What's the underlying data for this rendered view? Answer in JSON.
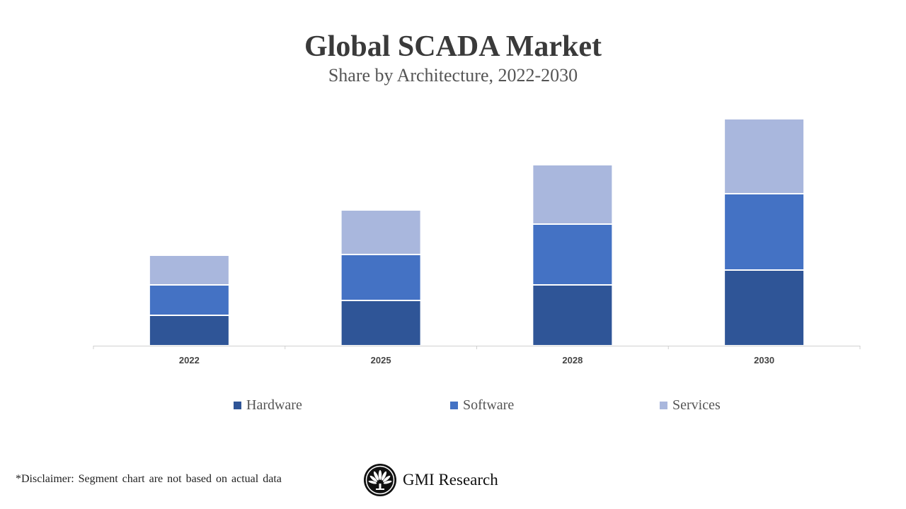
{
  "chart_data": {
    "type": "bar",
    "stacked": true,
    "title": "Global SCADA Market",
    "subtitle": "Share by Architecture, 2022-2030",
    "categories": [
      "2022",
      "2025",
      "2028",
      "2030"
    ],
    "series": [
      {
        "name": "Hardware",
        "color": "#2F5597",
        "values": [
          43,
          64,
          86,
          107
        ]
      },
      {
        "name": "Software",
        "color": "#4472C4",
        "values": [
          43,
          65,
          86,
          108
        ]
      },
      {
        "name": "Services",
        "color": "#A9B7DD",
        "values": [
          42,
          63,
          84,
          106
        ]
      }
    ],
    "ylim": [
      0,
      330
    ],
    "y_axis_shown": false,
    "grid": false,
    "legend_position": "bottom",
    "xlabel": "",
    "ylabel": ""
  },
  "footer": {
    "disclaimer": "*Disclaimer:   Segment chart are not based on actual data",
    "logo_text": "GMI Research"
  }
}
